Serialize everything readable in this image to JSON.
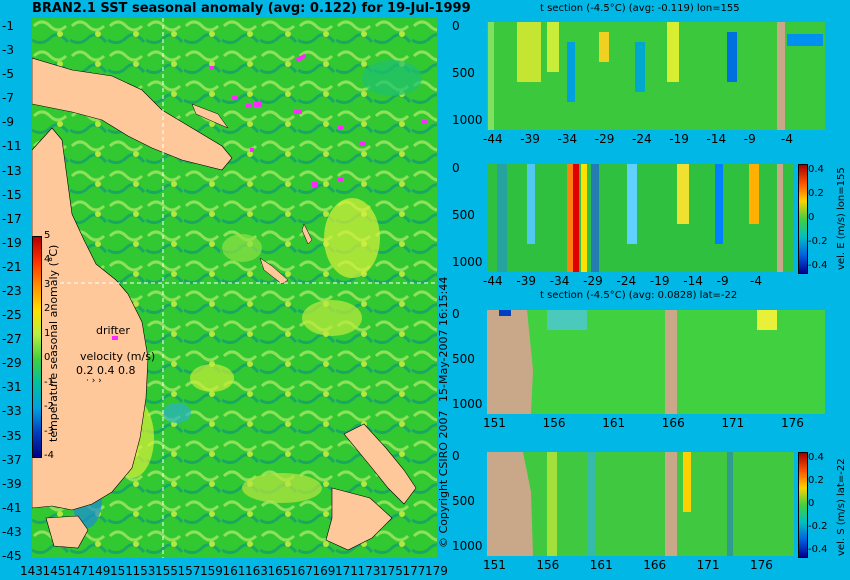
{
  "header": {
    "map_title": "BRAN2.1 SST seasonal anomaly (avg: 0.122) for 19-Jul-1999"
  },
  "map": {
    "lat_ticks": [
      "-1",
      "-3",
      "-5",
      "-7",
      "-9",
      "-11",
      "-13",
      "-15",
      "-17",
      "-19",
      "-21",
      "-23",
      "-25",
      "-27",
      "-29",
      "-31",
      "-33",
      "-35",
      "-37",
      "-39",
      "-41",
      "-43",
      "-45"
    ],
    "lon_ticks": [
      "143",
      "145",
      "147",
      "149",
      "151",
      "153",
      "155",
      "157",
      "159",
      "161",
      "163",
      "165",
      "167",
      "169",
      "171",
      "173",
      "175",
      "177",
      "179"
    ],
    "colorbar_ticks": [
      "5",
      "4",
      "3",
      "2",
      "1",
      "0",
      "-1",
      "-2",
      "-3",
      "-4"
    ],
    "colorbar_label": "temperature seasonal anomaly (°C)",
    "drifter_label": "drifter",
    "velocity_label": "velocity (m/s)",
    "velocity_ticks": "0.2 0.4 0.8",
    "section_lon_marker": 155,
    "section_lat_marker": -22
  },
  "panels": {
    "p1_title": "t section (-4.5°C) (avg: -0.119) lon=155",
    "p1_x_ticks": [
      "-44",
      "-39",
      "-34",
      "-29",
      "-24",
      "-19",
      "-14",
      "-9",
      "-4"
    ],
    "p2_x_ticks": [
      "-44",
      "-39",
      "-34",
      "-29",
      "-24",
      "-19",
      "-14",
      "-9",
      "-4"
    ],
    "p2_side_label": "vel. E (m/s) lon=155",
    "p3_title": "t section (-4.5°C) (avg: 0.0828) lat=-22",
    "p3_x_ticks": [
      "151",
      "156",
      "161",
      "166",
      "171",
      "176"
    ],
    "p4_x_ticks": [
      "151",
      "156",
      "161",
      "166",
      "171",
      "176"
    ],
    "p4_side_label": "vel. S (m/s) lat=-22",
    "depth_ticks": [
      "0",
      "500",
      "1000"
    ],
    "vel_colorbar_ticks": [
      "0.4",
      "0.2",
      "0",
      "-0.2",
      "-0.4"
    ]
  },
  "credits": {
    "date": "15-May-2007 16:15:44",
    "copyright": "© Copyright CSIRO 2007"
  },
  "chart_data": [
    {
      "type": "heatmap",
      "title": "BRAN2.1 SST seasonal anomaly (avg: 0.122) for 19-Jul-1999",
      "xlabel": "",
      "ylabel": "",
      "xlim": [
        143,
        180
      ],
      "ylim": [
        -45,
        0
      ],
      "colorbar_label": "temperature seasonal anomaly (°C)",
      "clim": [
        -4,
        5
      ],
      "mean_value": 0.122
    },
    {
      "type": "heatmap",
      "title": "t section (-4.5°C) (avg: -0.119) lon=155",
      "xlim": [
        -46,
        -1
      ],
      "ylim": [
        1050,
        0
      ],
      "mean_value": -0.119
    },
    {
      "type": "heatmap",
      "title": "",
      "side_label": "vel. E (m/s) lon=155",
      "xlim": [
        -46,
        -1
      ],
      "ylim": [
        1050,
        0
      ],
      "clim": [
        -0.4,
        0.4
      ]
    },
    {
      "type": "heatmap",
      "title": "t section (-4.5°C) (avg: 0.0828) lat=-22",
      "xlim": [
        150,
        180
      ],
      "ylim": [
        1050,
        0
      ],
      "mean_value": 0.0828
    },
    {
      "type": "heatmap",
      "title": "",
      "side_label": "vel. S (m/s) lat=-22",
      "xlim": [
        150,
        180
      ],
      "ylim": [
        1050,
        0
      ],
      "clim": [
        -0.4,
        0.4
      ]
    }
  ]
}
